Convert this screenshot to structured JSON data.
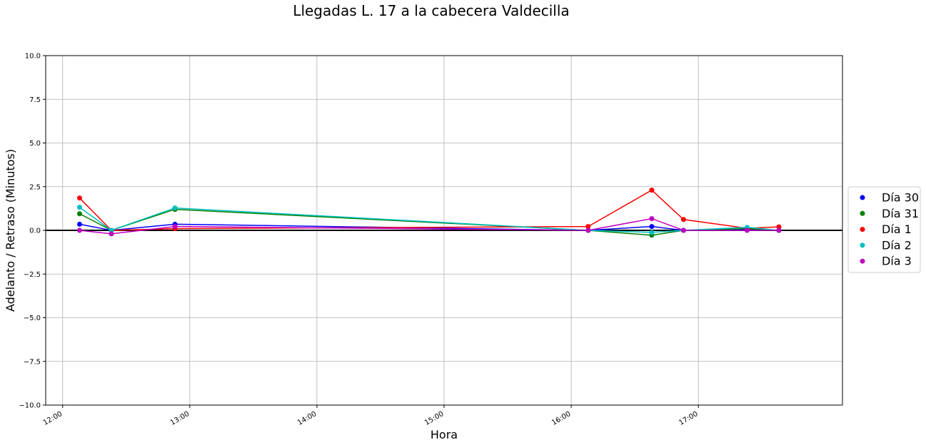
{
  "chart_data": {
    "type": "line",
    "title": "Llegadas L. 17 a la cabecera Valdecilla",
    "xlabel": "Hora",
    "ylabel": "Adelanto / Retraso (Minutos)",
    "xlim": [
      "11:52",
      "18:08"
    ],
    "ylim": [
      -10,
      10
    ],
    "x_ticks": [
      "12:00",
      "13:00",
      "14:00",
      "15:00",
      "16:00",
      "17:00"
    ],
    "y_ticks": [
      "10.0",
      "7.5",
      "5.0",
      "2.5",
      "0.0",
      "−2.5",
      "−5.0",
      "−7.5",
      "−10.0"
    ],
    "grid": true,
    "legend_position": "right, outside plot",
    "reference_line_y": 0,
    "x": [
      "12:08",
      "12:23",
      "12:53",
      "16:08",
      "16:38",
      "16:53",
      "17:23",
      "17:38"
    ],
    "series": [
      {
        "name": "Día 30",
        "color": "#0000ff",
        "values": [
          0.35,
          0.0,
          0.35,
          0.0,
          0.22,
          0.0,
          0.05,
          0.0
        ]
      },
      {
        "name": "Día 31",
        "color": "#008000",
        "values": [
          0.95,
          0.0,
          1.2,
          0.0,
          -0.28,
          0.0,
          0.1,
          0.0
        ]
      },
      {
        "name": "Día 1",
        "color": "#ff0000",
        "values": [
          1.85,
          0.0,
          0.1,
          0.22,
          2.3,
          0.62,
          0.12,
          0.2
        ]
      },
      {
        "name": "Día 2",
        "color": "#00bfbf",
        "values": [
          1.32,
          0.0,
          1.28,
          0.0,
          -0.12,
          0.0,
          0.17,
          0.0
        ]
      },
      {
        "name": "Día 3",
        "color": "#bf00bf",
        "values": [
          0.0,
          -0.2,
          0.22,
          0.0,
          0.67,
          0.0,
          0.0,
          0.0
        ]
      }
    ]
  }
}
